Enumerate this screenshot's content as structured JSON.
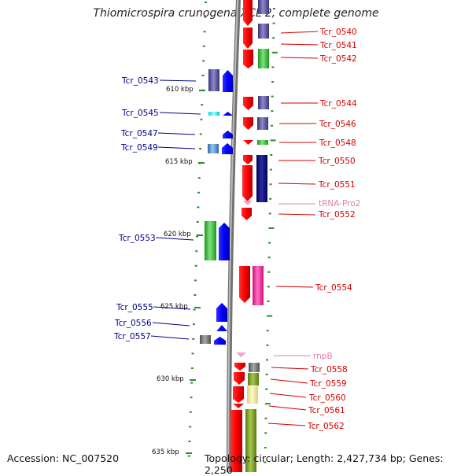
{
  "title": "Thiomicrospira crunogena XCL-2, complete genome",
  "footer": {
    "accession": "Accession: NC_007520",
    "topology": "Topology: circular; Length: 2,427,734 bp; Genes: 2,250"
  },
  "colors": {
    "left_label": "#00008b",
    "right_label": "#d40000",
    "rna_label": "#e080a8",
    "tick": "#2e8b2e",
    "backbone": "#888888"
  },
  "scale_labels": [
    "610 kbp",
    "615 kbp",
    "620 kbp",
    "625 kbp",
    "630 kbp",
    "635 kbp"
  ],
  "genes": [
    {
      "name": "Tcr_0540",
      "strand": "right"
    },
    {
      "name": "Tcr_0541",
      "strand": "right"
    },
    {
      "name": "Tcr_0542",
      "strand": "right"
    },
    {
      "name": "Tcr_0543",
      "strand": "left"
    },
    {
      "name": "Tcr_0544",
      "strand": "right"
    },
    {
      "name": "Tcr_0545",
      "strand": "left"
    },
    {
      "name": "Tcr_0546",
      "strand": "right"
    },
    {
      "name": "Tcr_0547",
      "strand": "left"
    },
    {
      "name": "Tcr_0548",
      "strand": "right"
    },
    {
      "name": "Tcr_0549",
      "strand": "left"
    },
    {
      "name": "Tcr_0550",
      "strand": "right"
    },
    {
      "name": "Tcr_0551",
      "strand": "right"
    },
    {
      "name": "tRNA-Pro2",
      "strand": "rna"
    },
    {
      "name": "Tcr_0552",
      "strand": "right"
    },
    {
      "name": "Tcr_0553",
      "strand": "left"
    },
    {
      "name": "Tcr_0554",
      "strand": "right"
    },
    {
      "name": "Tcr_0555",
      "strand": "left"
    },
    {
      "name": "Tcr_0556",
      "strand": "left"
    },
    {
      "name": "Tcr_0557",
      "strand": "left"
    },
    {
      "name": "rnpB",
      "strand": "rna"
    },
    {
      "name": "Tcr_0558",
      "strand": "right"
    },
    {
      "name": "Tcr_0559",
      "strand": "right"
    },
    {
      "name": "Tcr_0560",
      "strand": "right"
    },
    {
      "name": "Tcr_0561",
      "strand": "right"
    },
    {
      "name": "Tcr_0562",
      "strand": "right"
    }
  ]
}
